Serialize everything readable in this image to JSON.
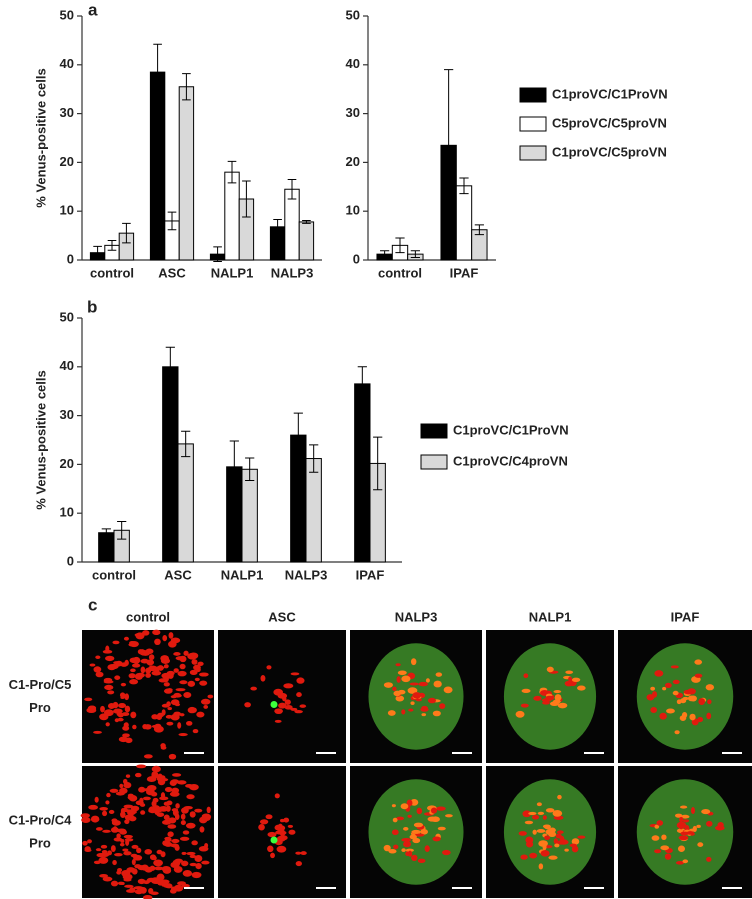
{
  "panels": [
    "a",
    "b",
    "c"
  ],
  "chart_data": [
    {
      "type": "bar",
      "ylabel": "% Venus-positive cells",
      "categories": [
        "control",
        "ASC",
        "NALP1",
        "NALP3"
      ],
      "ylim": [
        0,
        50
      ],
      "yticks": [
        0,
        10,
        20,
        30,
        40,
        50
      ],
      "series": [
        {
          "color": "#000000",
          "values": [
            1.5,
            38.5,
            1.2,
            6.8
          ],
          "errors": [
            1.3,
            5.7,
            1.5,
            1.5
          ]
        },
        {
          "color": "#ffffff",
          "values": [
            3,
            8,
            18,
            14.5
          ],
          "errors": [
            1,
            1.8,
            2.2,
            2
          ]
        },
        {
          "color": "#d9d9d9",
          "values": [
            5.5,
            35.5,
            12.5,
            7.8
          ],
          "errors": [
            2,
            2.7,
            3.7,
            0.3
          ]
        }
      ]
    },
    {
      "type": "bar",
      "categories": [
        "control",
        "IPAF"
      ],
      "ylim": [
        0,
        50
      ],
      "yticks": [
        0,
        10,
        20,
        30,
        40,
        50
      ],
      "legend": "right",
      "series": [
        {
          "name": "C1proVC/C1ProVN",
          "color": "#000000",
          "values": [
            1.2,
            23.5
          ],
          "errors": [
            0.7,
            15.5
          ]
        },
        {
          "name": "C5proVC/C5proVN",
          "color": "#ffffff",
          "values": [
            3,
            15.2
          ],
          "errors": [
            1.5,
            1.6
          ]
        },
        {
          "name": "C1proVC/C5proVN",
          "color": "#d9d9d9",
          "values": [
            1.2,
            6.2
          ],
          "errors": [
            0.7,
            1
          ]
        }
      ]
    },
    {
      "type": "bar",
      "ylabel": "% Venus-positive cells",
      "categories": [
        "control",
        "ASC",
        "NALP1",
        "NALP3",
        "IPAF"
      ],
      "ylim": [
        0,
        50
      ],
      "yticks": [
        0,
        10,
        20,
        30,
        40,
        50
      ],
      "legend": "right",
      "series": [
        {
          "name": "C1proVC/C1ProVN",
          "color": "#000000",
          "values": [
            6,
            40,
            19.5,
            26,
            36.5
          ],
          "errors": [
            0.8,
            4,
            5.3,
            4.5,
            3.5
          ]
        },
        {
          "name": "C1proVC/C4proVN",
          "color": "#d9d9d9",
          "values": [
            6.5,
            24.2,
            19,
            21.2,
            20.2
          ],
          "errors": [
            1.8,
            2.6,
            2.3,
            2.8,
            5.4
          ]
        }
      ]
    }
  ],
  "image_grid": {
    "columns": [
      "control",
      "ASC",
      "NALP3",
      "NALP1",
      "IPAF"
    ],
    "rows": [
      [
        "C1-Pro/C5",
        "Pro"
      ],
      [
        "C1-Pro/C4",
        "Pro"
      ]
    ]
  }
}
